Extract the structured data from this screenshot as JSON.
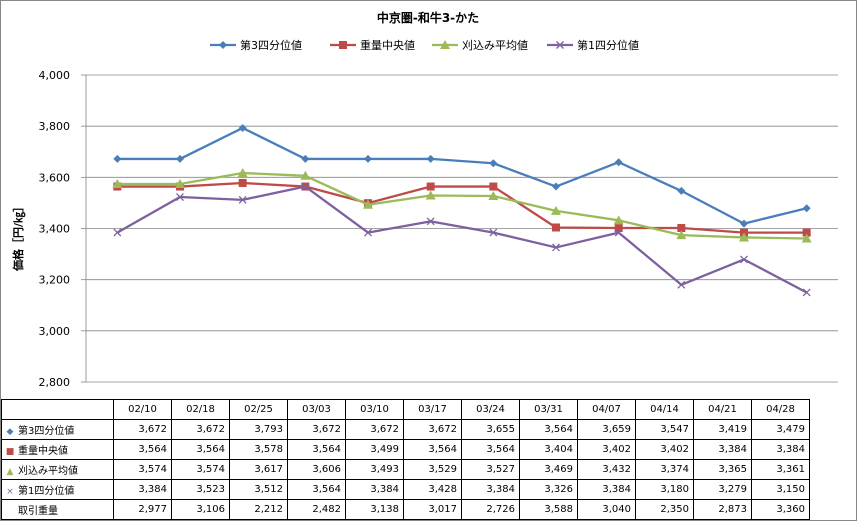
{
  "chart_data": {
    "type": "line",
    "title": "中京圏-和牛3-かた",
    "ylabel": "価格［円/㎏］",
    "ylim": [
      2800,
      4000
    ],
    "yticks": [
      "2,800",
      "3,000",
      "3,200",
      "3,400",
      "3,600",
      "3,800",
      "4,000"
    ],
    "ytick_values": [
      2800,
      3000,
      3200,
      3400,
      3600,
      3800,
      4000
    ],
    "grid": true,
    "legend_position": "top",
    "categories": [
      "02/10",
      "02/18",
      "02/25",
      "03/03",
      "03/10",
      "03/17",
      "03/24",
      "03/31",
      "04/07",
      "04/14",
      "04/21",
      "04/28"
    ],
    "series": [
      {
        "name": "第3四分位値",
        "color": "#4a7ebb",
        "marker": "diamond",
        "values": [
          3672,
          3672,
          3793,
          3672,
          3672,
          3672,
          3655,
          3564,
          3659,
          3547,
          3419,
          3479
        ],
        "labels": [
          "3,672",
          "3,672",
          "3,793",
          "3,672",
          "3,672",
          "3,672",
          "3,655",
          "3,564",
          "3,659",
          "3,547",
          "3,419",
          "3,479"
        ]
      },
      {
        "name": "重量中央値",
        "color": "#be4b48",
        "marker": "square",
        "values": [
          3564,
          3564,
          3578,
          3564,
          3499,
          3564,
          3564,
          3404,
          3402,
          3402,
          3384,
          3384
        ],
        "labels": [
          "3,564",
          "3,564",
          "3,578",
          "3,564",
          "3,499",
          "3,564",
          "3,564",
          "3,404",
          "3,402",
          "3,402",
          "3,384",
          "3,384"
        ]
      },
      {
        "name": "刈込み平均値",
        "color": "#9bbb59",
        "marker": "triangle",
        "values": [
          3574,
          3574,
          3617,
          3606,
          3493,
          3529,
          3527,
          3469,
          3432,
          3374,
          3365,
          3361
        ],
        "labels": [
          "3,574",
          "3,574",
          "3,617",
          "3,606",
          "3,493",
          "3,529",
          "3,527",
          "3,469",
          "3,432",
          "3,374",
          "3,365",
          "3,361"
        ]
      },
      {
        "name": "第1四分位値",
        "color": "#7d60a0",
        "marker": "x",
        "values": [
          3384,
          3523,
          3512,
          3564,
          3384,
          3428,
          3384,
          3326,
          3384,
          3180,
          3279,
          3150
        ],
        "labels": [
          "3,384",
          "3,523",
          "3,512",
          "3,564",
          "3,384",
          "3,428",
          "3,384",
          "3,326",
          "3,384",
          "3,180",
          "3,279",
          "3,150"
        ]
      }
    ],
    "table_extra_row": {
      "name": "取引重量",
      "labels": [
        "2,977",
        "3,106",
        "2,212",
        "2,482",
        "3,138",
        "3,017",
        "2,726",
        "3,588",
        "3,040",
        "2,350",
        "2,873",
        "3,360"
      ]
    }
  }
}
